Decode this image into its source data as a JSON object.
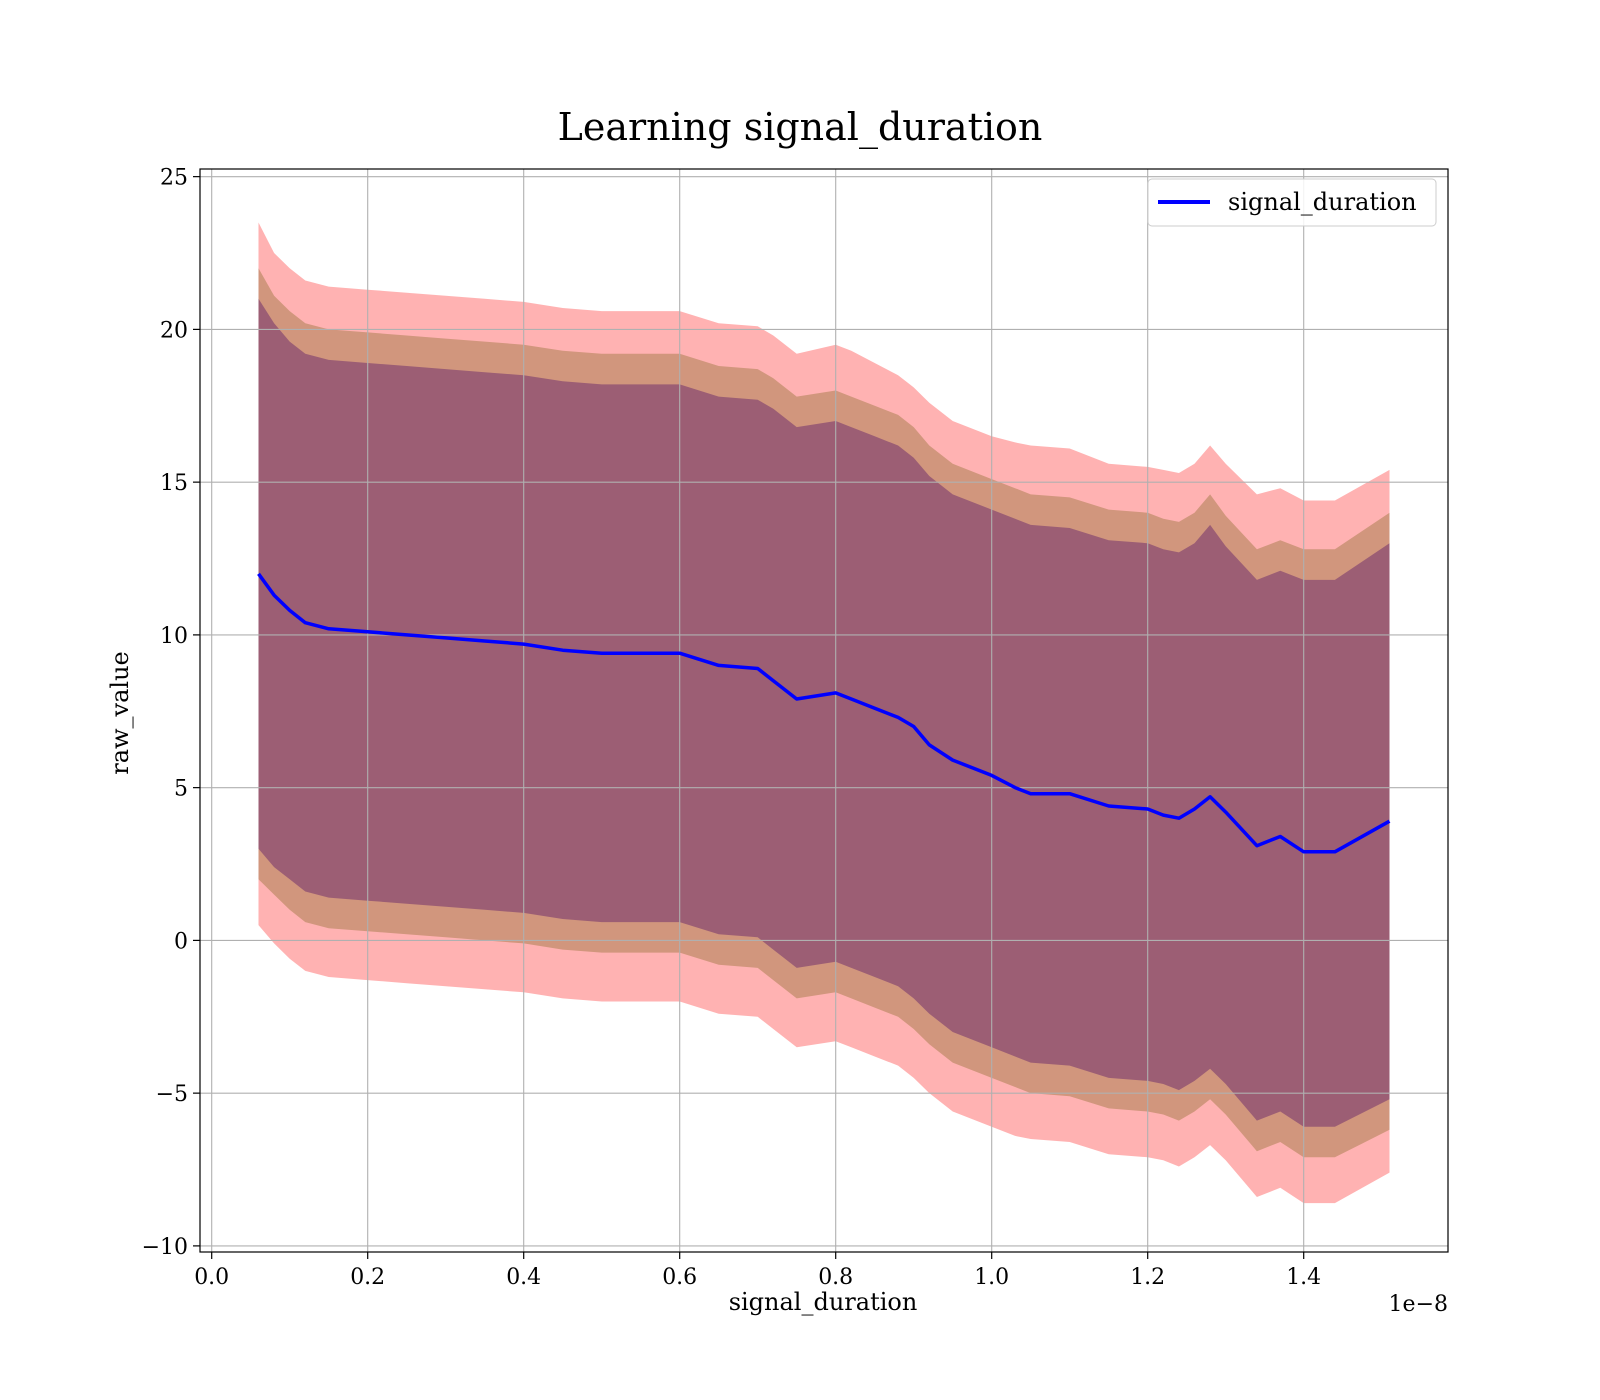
{
  "chart_data": {
    "type": "line",
    "title": "Learning signal_duration",
    "xlabel": "signal_duration",
    "ylabel": "raw_value",
    "x_offset_label": "1e−8",
    "xlim": [
      -0.015,
      1.585
    ],
    "ylim": [
      -10.2,
      25.25
    ],
    "x_ticks": [
      0.0,
      0.2,
      0.4,
      0.6,
      0.8,
      1.0,
      1.2,
      1.4
    ],
    "x_tick_labels": [
      "0.0",
      "0.2",
      "0.4",
      "0.6",
      "0.8",
      "1.0",
      "1.2",
      "1.4"
    ],
    "y_ticks": [
      -10,
      -5,
      0,
      5,
      10,
      15,
      20,
      25
    ],
    "y_tick_labels": [
      "−10",
      "−5",
      "0",
      "5",
      "10",
      "15",
      "20",
      "25"
    ],
    "grid": true,
    "legend_position": "top-right",
    "colors": {
      "mean_line": "#0000ff",
      "band_outer": "#ff0000",
      "band_middle": "#8b6b2e",
      "band_inner": "#5b1a6b"
    },
    "band_opacity": {
      "band_outer": 0.3,
      "band_middle": 0.4,
      "band_inner": 0.45
    },
    "x": [
      0.06,
      0.08,
      0.1,
      0.12,
      0.15,
      0.2,
      0.25,
      0.3,
      0.35,
      0.4,
      0.45,
      0.5,
      0.55,
      0.6,
      0.65,
      0.7,
      0.72,
      0.75,
      0.8,
      0.82,
      0.85,
      0.88,
      0.9,
      0.92,
      0.95,
      1.0,
      1.03,
      1.05,
      1.1,
      1.15,
      1.2,
      1.22,
      1.24,
      1.26,
      1.28,
      1.3,
      1.34,
      1.37,
      1.4,
      1.44,
      1.51
    ],
    "series": [
      {
        "name": "signal_duration",
        "values": [
          12.0,
          11.3,
          10.8,
          10.4,
          10.2,
          10.1,
          10.0,
          9.9,
          9.8,
          9.7,
          9.5,
          9.4,
          9.4,
          9.4,
          9.0,
          8.9,
          8.5,
          7.9,
          8.1,
          7.9,
          7.6,
          7.3,
          7.0,
          6.4,
          5.9,
          5.4,
          5.0,
          4.8,
          4.8,
          4.4,
          4.3,
          4.1,
          4.0,
          4.3,
          4.7,
          4.2,
          3.1,
          3.4,
          2.9,
          2.9,
          3.9
        ]
      }
    ],
    "bands": [
      {
        "color_key": "band_outer",
        "upper": [
          23.5,
          22.5,
          22.0,
          21.6,
          21.4,
          21.3,
          21.2,
          21.1,
          21.0,
          20.9,
          20.7,
          20.6,
          20.6,
          20.6,
          20.2,
          20.1,
          19.8,
          19.2,
          19.5,
          19.3,
          18.9,
          18.5,
          18.1,
          17.6,
          17.0,
          16.5,
          16.3,
          16.2,
          16.1,
          15.6,
          15.5,
          15.4,
          15.3,
          15.6,
          16.2,
          15.6,
          14.6,
          14.8,
          14.4,
          14.4,
          15.4
        ],
        "lower": [
          0.5,
          -0.1,
          -0.6,
          -1.0,
          -1.2,
          -1.3,
          -1.4,
          -1.5,
          -1.6,
          -1.7,
          -1.9,
          -2.0,
          -2.0,
          -2.0,
          -2.4,
          -2.5,
          -2.9,
          -3.5,
          -3.3,
          -3.5,
          -3.8,
          -4.1,
          -4.5,
          -5.0,
          -5.6,
          -6.1,
          -6.4,
          -6.5,
          -6.6,
          -7.0,
          -7.1,
          -7.2,
          -7.4,
          -7.1,
          -6.7,
          -7.2,
          -8.4,
          -8.1,
          -8.6,
          -8.6,
          -7.6
        ]
      },
      {
        "color_key": "band_middle",
        "upper": [
          22.0,
          21.1,
          20.6,
          20.2,
          20.0,
          19.9,
          19.8,
          19.7,
          19.6,
          19.5,
          19.3,
          19.2,
          19.2,
          19.2,
          18.8,
          18.7,
          18.4,
          17.8,
          18.0,
          17.8,
          17.5,
          17.2,
          16.8,
          16.2,
          15.6,
          15.1,
          14.8,
          14.6,
          14.5,
          14.1,
          14.0,
          13.8,
          13.7,
          14.0,
          14.6,
          13.9,
          12.8,
          13.1,
          12.8,
          12.8,
          14.0
        ],
        "lower": [
          2.0,
          1.5,
          1.0,
          0.6,
          0.4,
          0.3,
          0.2,
          0.1,
          0.0,
          -0.1,
          -0.3,
          -0.4,
          -0.4,
          -0.4,
          -0.8,
          -0.9,
          -1.3,
          -1.9,
          -1.7,
          -1.9,
          -2.2,
          -2.5,
          -2.9,
          -3.4,
          -4.0,
          -4.5,
          -4.8,
          -5.0,
          -5.1,
          -5.5,
          -5.6,
          -5.7,
          -5.9,
          -5.6,
          -5.2,
          -5.7,
          -6.9,
          -6.6,
          -7.1,
          -7.1,
          -6.2
        ]
      },
      {
        "color_key": "band_inner",
        "upper": [
          21.0,
          20.2,
          19.6,
          19.2,
          19.0,
          18.9,
          18.8,
          18.7,
          18.6,
          18.5,
          18.3,
          18.2,
          18.2,
          18.2,
          17.8,
          17.7,
          17.4,
          16.8,
          17.0,
          16.8,
          16.5,
          16.2,
          15.8,
          15.2,
          14.6,
          14.1,
          13.8,
          13.6,
          13.5,
          13.1,
          13.0,
          12.8,
          12.7,
          13.0,
          13.6,
          12.9,
          11.8,
          12.1,
          11.8,
          11.8,
          13.0
        ],
        "lower": [
          3.0,
          2.4,
          2.0,
          1.6,
          1.4,
          1.3,
          1.2,
          1.1,
          1.0,
          0.9,
          0.7,
          0.6,
          0.6,
          0.6,
          0.2,
          0.1,
          -0.3,
          -0.9,
          -0.7,
          -0.9,
          -1.2,
          -1.5,
          -1.9,
          -2.4,
          -3.0,
          -3.5,
          -3.8,
          -4.0,
          -4.1,
          -4.5,
          -4.6,
          -4.7,
          -4.9,
          -4.6,
          -4.2,
          -4.7,
          -5.9,
          -5.6,
          -6.1,
          -6.1,
          -5.2
        ]
      }
    ]
  }
}
